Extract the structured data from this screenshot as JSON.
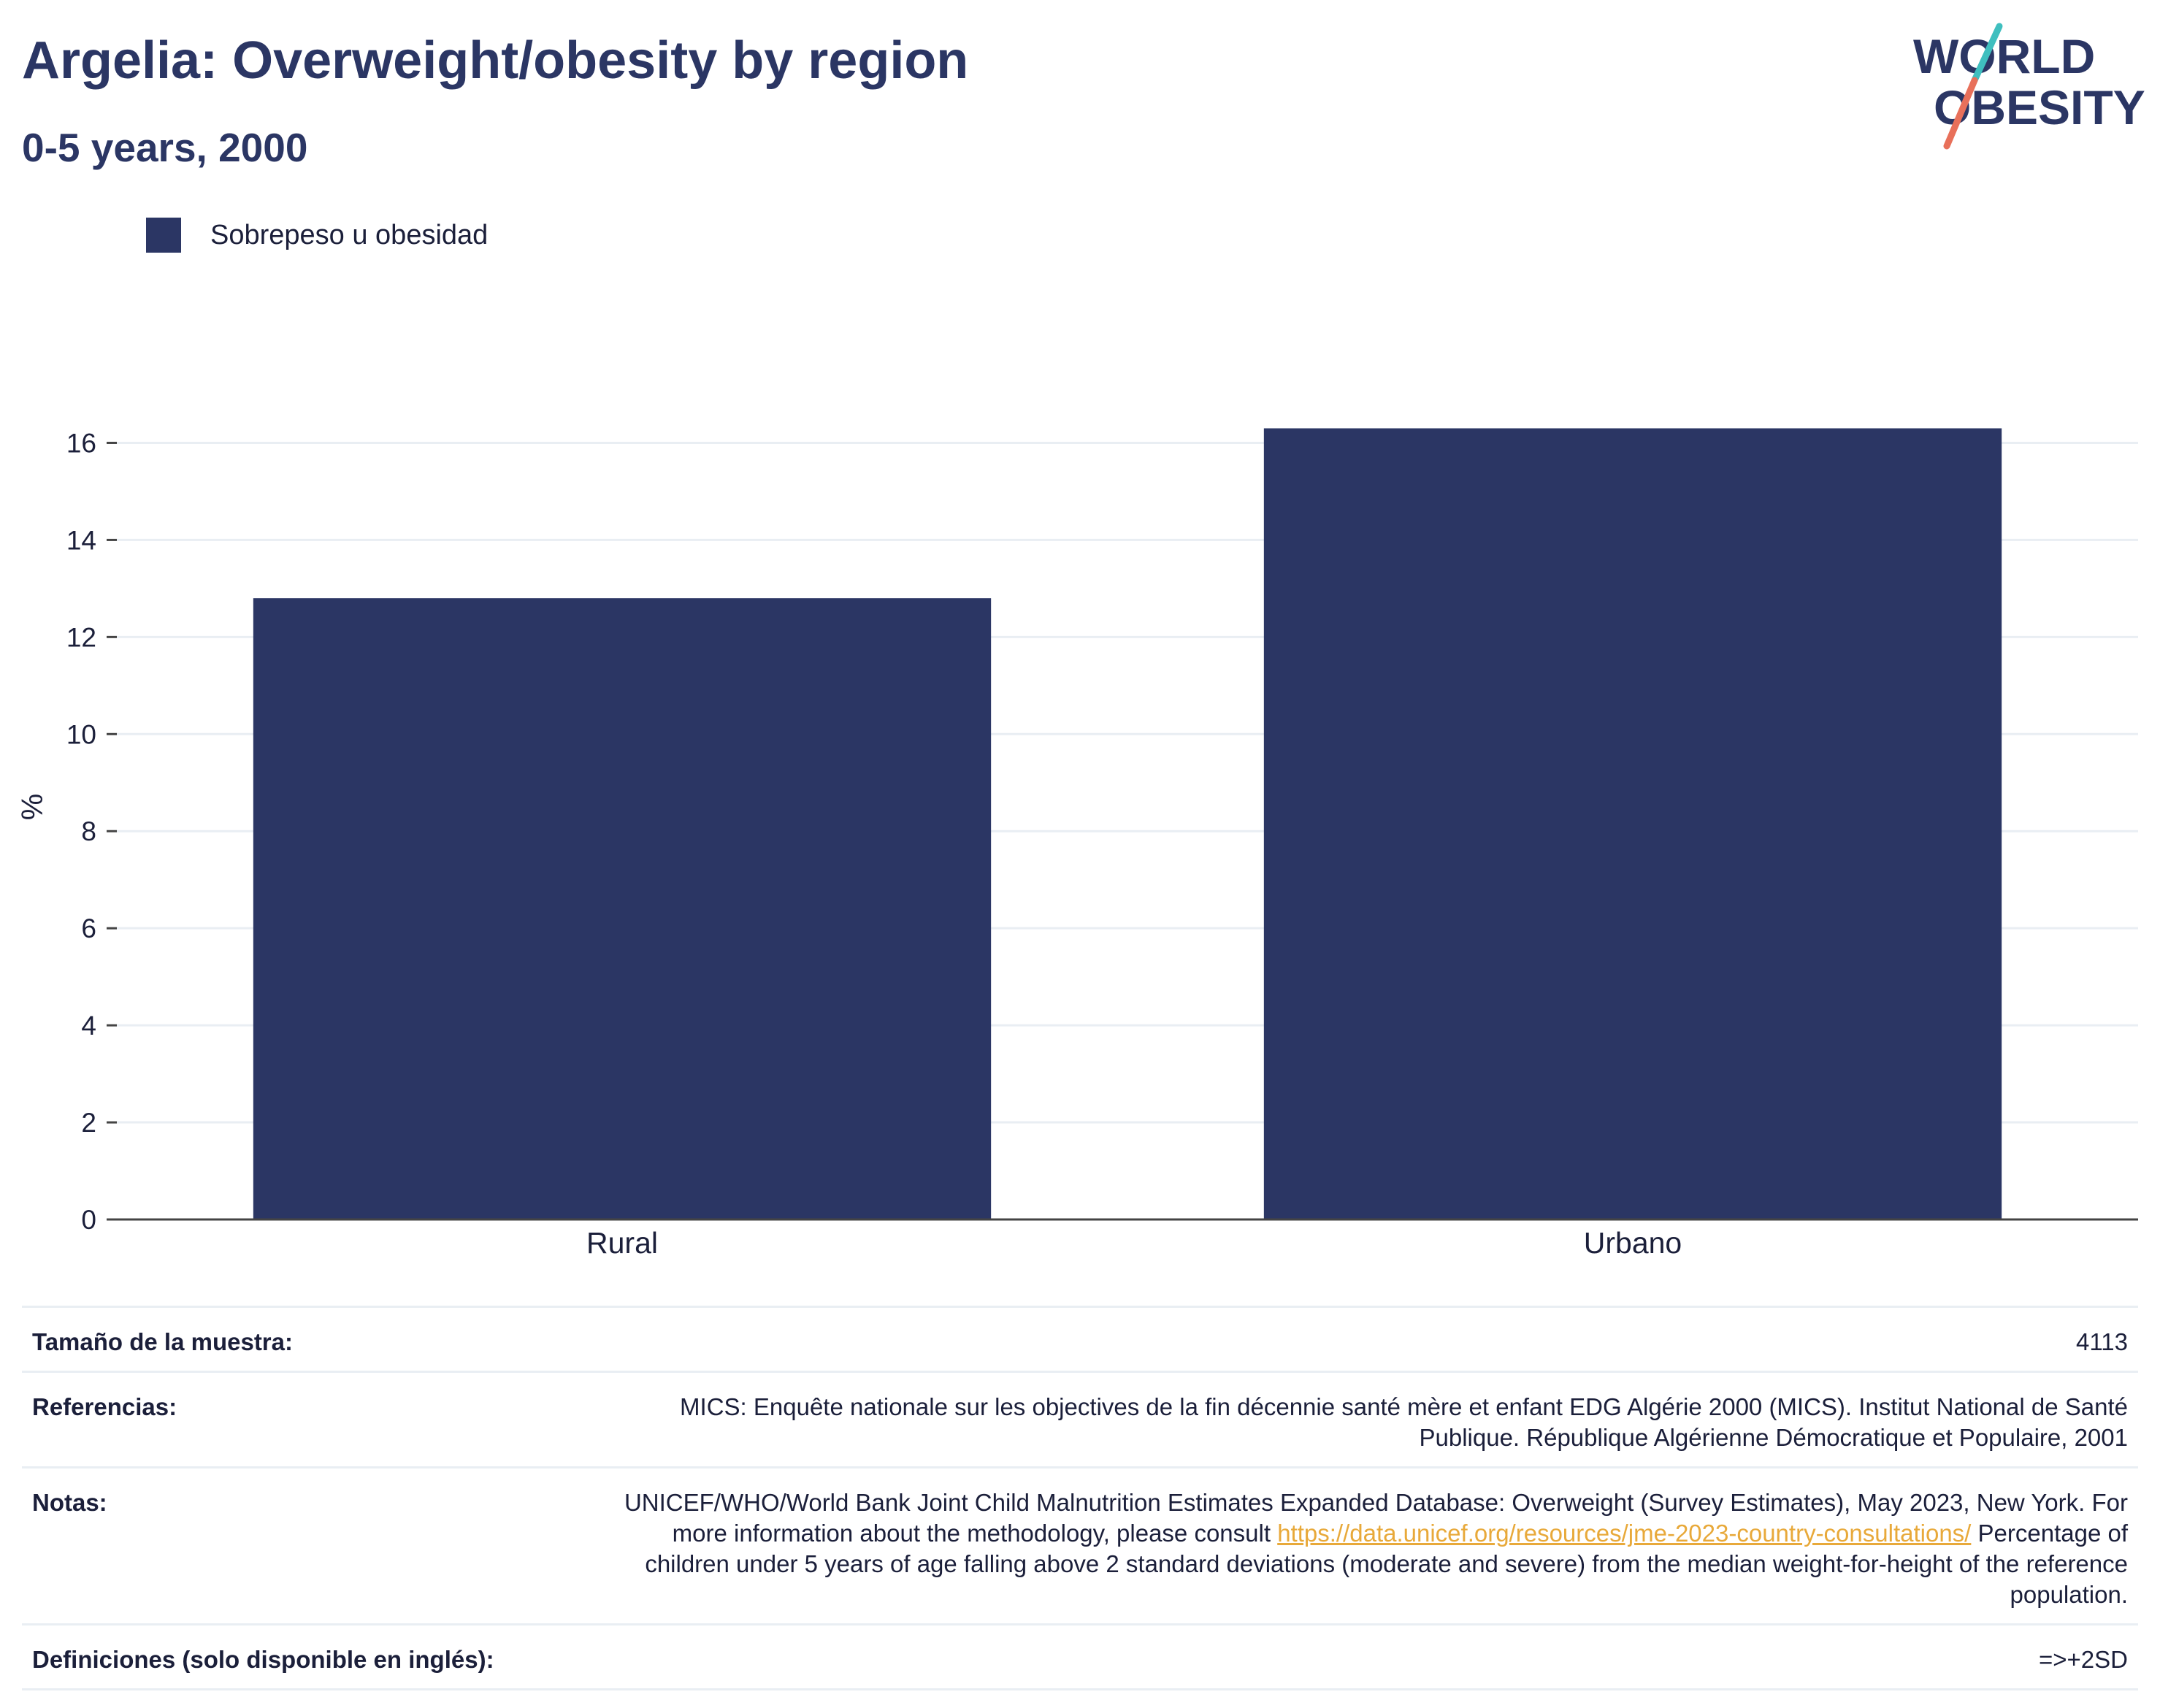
{
  "header": {
    "title": "Argelia: Overweight/obesity by region",
    "subtitle": "0-5 years, 2000",
    "logo": {
      "line1": "WORLD",
      "line2": "OBESITY",
      "colors": {
        "text": "#2b3664",
        "slash_top": "#3fbfbf",
        "slash_bottom": "#e8705a"
      }
    }
  },
  "legend": {
    "items": [
      {
        "label": "Sobrepeso u obesidad",
        "color": "#2b3664"
      }
    ]
  },
  "chart_data": {
    "type": "bar",
    "categories": [
      "Rural",
      "Urbano"
    ],
    "series": [
      {
        "name": "Sobrepeso u obesidad",
        "values": [
          12.8,
          16.3
        ],
        "color": "#2b3664"
      }
    ],
    "ylabel": "%",
    "xlabel": "",
    "ylim": [
      0,
      17
    ],
    "yticks": [
      0,
      2,
      4,
      6,
      8,
      10,
      12,
      14,
      16
    ],
    "grid": true,
    "legend_position": "top-left"
  },
  "info": {
    "rows": [
      {
        "key": "Tamaño de la muestra:",
        "value": "4113"
      },
      {
        "key": "Referencias:",
        "value": "MICS: Enquête nationale sur les objectives de la fin décennie santé mère et enfant EDG Algérie 2000 (MICS). Institut National de Santé Publique. République Algérienne Démocratique et Populaire, 2001"
      },
      {
        "key": "Notas:",
        "value_before": "UNICEF/WHO/World Bank Joint Child Malnutrition Estimates Expanded Database: Overweight (Survey Estimates), May 2023, New York. For more information about the methodology, please consult ",
        "link": "https://data.unicef.org/resources/jme-2023-country-consultations/",
        "value_after": " Percentage of children under 5 years of age falling above 2 standard deviations (moderate and severe) from the median weight-for-height of the reference population."
      },
      {
        "key": "Definiciones (solo disponible en inglés):",
        "value": "=>+2SD"
      }
    ]
  }
}
